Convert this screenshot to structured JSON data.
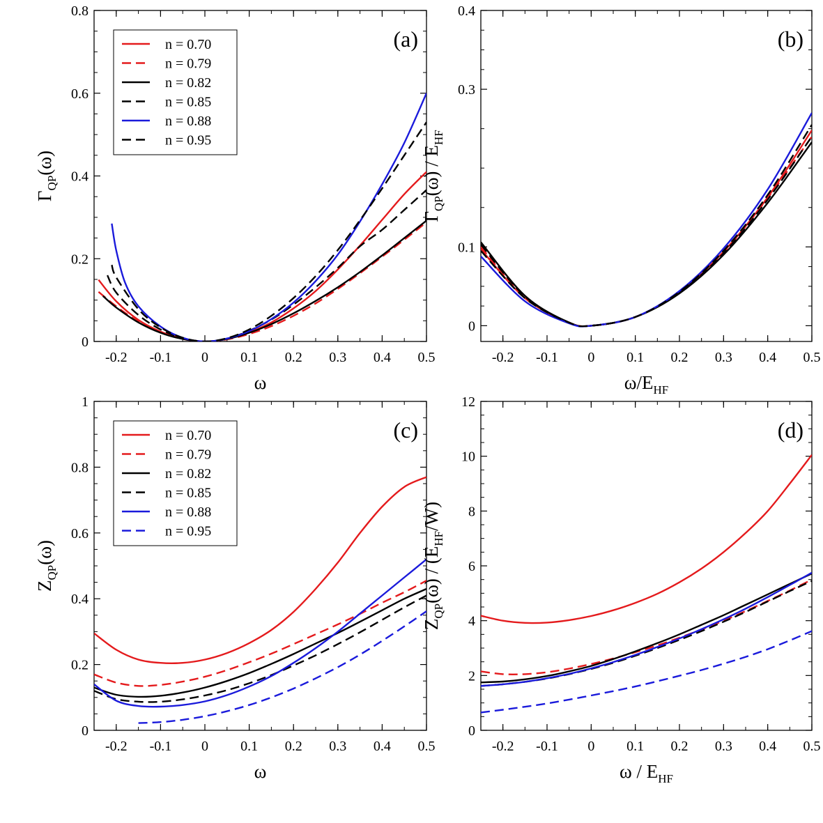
{
  "chart_data": [
    {
      "type": "line",
      "panel": "(a)",
      "xlabel": {
        "base": "ω",
        "sub": ""
      },
      "ylabel": {
        "pre": "Γ",
        "sub": "QP",
        "post": "(ω)"
      },
      "xlim": [
        -0.25,
        0.5
      ],
      "ylim": [
        0,
        0.8
      ],
      "xticks": [
        -0.2,
        -0.1,
        0,
        0.1,
        0.2,
        0.3,
        0.4,
        0.5
      ],
      "xtick_labels": [
        "-0.2",
        "-0.1",
        "0",
        "0.1",
        "0.2",
        "0.3",
        "0.4",
        "0.5"
      ],
      "yticks": [
        0,
        0.2,
        0.4,
        0.6,
        0.8
      ],
      "ytick_labels": [
        "0",
        "0.2",
        "0.4",
        "0.6",
        "0.8"
      ],
      "legend_position": "top-left",
      "series": [
        {
          "name": "n = 0.70",
          "color": "#e41a1c",
          "dash": "solid",
          "x": [
            -0.24,
            -0.2,
            -0.15,
            -0.1,
            -0.05,
            0,
            0.05,
            0.1,
            0.15,
            0.2,
            0.25,
            0.3,
            0.35,
            0.4,
            0.45,
            0.5
          ],
          "y": [
            0.149,
            0.097,
            0.052,
            0.024,
            0.007,
            0.0,
            0.006,
            0.022,
            0.046,
            0.08,
            0.122,
            0.174,
            0.232,
            0.294,
            0.356,
            0.41
          ]
        },
        {
          "name": "n = 0.79",
          "color": "#e41a1c",
          "dash": "dashed",
          "x": [
            -0.24,
            -0.2,
            -0.15,
            -0.1,
            -0.05,
            0,
            0.05,
            0.1,
            0.15,
            0.2,
            0.25,
            0.3,
            0.35,
            0.4,
            0.45,
            0.5
          ],
          "y": [
            0.12,
            0.085,
            0.048,
            0.022,
            0.006,
            0.0,
            0.005,
            0.018,
            0.037,
            0.062,
            0.092,
            0.127,
            0.165,
            0.205,
            0.246,
            0.288
          ]
        },
        {
          "name": "n = 0.82",
          "color": "#000000",
          "dash": "solid",
          "x": [
            -0.23,
            -0.2,
            -0.15,
            -0.1,
            -0.05,
            0,
            0.05,
            0.1,
            0.15,
            0.2,
            0.25,
            0.3,
            0.35,
            0.4,
            0.45,
            0.5
          ],
          "y": [
            0.11,
            0.082,
            0.046,
            0.021,
            0.006,
            0.0,
            0.006,
            0.021,
            0.042,
            0.068,
            0.098,
            0.131,
            0.168,
            0.208,
            0.25,
            0.292
          ]
        },
        {
          "name": "n = 0.85",
          "color": "#000000",
          "dash": "dashed",
          "x": [
            -0.22,
            -0.2,
            -0.15,
            -0.1,
            -0.05,
            0,
            0.05,
            0.1,
            0.15,
            0.2,
            0.25,
            0.3,
            0.35,
            0.4,
            0.45,
            0.5
          ],
          "y": [
            0.16,
            0.118,
            0.064,
            0.029,
            0.008,
            0.0,
            0.007,
            0.026,
            0.053,
            0.089,
            0.131,
            0.178,
            0.23,
            0.27,
            0.318,
            0.366
          ]
        },
        {
          "name": "n = 0.88",
          "color": "#1a1adb",
          "dash": "solid",
          "x": [
            -0.21,
            -0.2,
            -0.18,
            -0.15,
            -0.1,
            -0.05,
            0,
            0.05,
            0.1,
            0.15,
            0.2,
            0.25,
            0.3,
            0.35,
            0.4,
            0.45,
            0.5
          ],
          "y": [
            0.285,
            0.22,
            0.142,
            0.085,
            0.036,
            0.009,
            0.0,
            0.007,
            0.025,
            0.054,
            0.094,
            0.146,
            0.21,
            0.29,
            0.38,
            0.48,
            0.6
          ]
        },
        {
          "name": "n = 0.95",
          "color": "#000000",
          "dash": "dashed",
          "x": [
            -0.21,
            -0.2,
            -0.15,
            -0.1,
            -0.05,
            0,
            0.05,
            0.1,
            0.15,
            0.2,
            0.25,
            0.3,
            0.35,
            0.4,
            0.45,
            0.5
          ],
          "y": [
            0.185,
            0.155,
            0.078,
            0.034,
            0.009,
            0.0,
            0.008,
            0.029,
            0.062,
            0.105,
            0.158,
            0.221,
            0.293,
            0.37,
            0.45,
            0.53
          ]
        }
      ]
    },
    {
      "type": "line",
      "panel": "(b)",
      "xlabel": {
        "base": "ω/E",
        "sub": "HF"
      },
      "ylabel": {
        "pre": "Γ",
        "sub": "QP",
        "post": "(ω) / E",
        "sub2": "HF"
      },
      "xlim": [
        -0.25,
        0.5
      ],
      "ylim": [
        -0.02,
        0.4
      ],
      "xticks": [
        -0.2,
        -0.1,
        0,
        0.1,
        0.2,
        0.3,
        0.4,
        0.5
      ],
      "xtick_labels": [
        "-0.2",
        "-0.1",
        "0",
        "0.1",
        "0.2",
        "0.3",
        "0.4",
        "0.5"
      ],
      "yticks": [
        0,
        0.1,
        0.3,
        0.4
      ],
      "ytick_labels": [
        "0",
        "0.1",
        "0.3",
        "0.4"
      ],
      "series": [
        {
          "name": "n = 0.70",
          "color": "#e41a1c",
          "dash": "solid",
          "x": [
            -0.25,
            -0.15,
            -0.05,
            0,
            0.1,
            0.2,
            0.3,
            0.4,
            0.5
          ],
          "y": [
            0.097,
            0.035,
            0.004,
            0.0,
            0.011,
            0.043,
            0.094,
            0.163,
            0.248
          ]
        },
        {
          "name": "n = 0.79",
          "color": "#e41a1c",
          "dash": "dashed",
          "x": [
            -0.25,
            -0.15,
            -0.05,
            0,
            0.1,
            0.2,
            0.3,
            0.4,
            0.5
          ],
          "y": [
            0.1,
            0.036,
            0.004,
            0.0,
            0.011,
            0.043,
            0.093,
            0.162,
            0.24
          ]
        },
        {
          "name": "n = 0.82",
          "color": "#000000",
          "dash": "solid",
          "x": [
            -0.25,
            -0.15,
            -0.05,
            0,
            0.1,
            0.2,
            0.3,
            0.4,
            0.5
          ],
          "y": [
            0.106,
            0.038,
            0.004,
            0.0,
            0.011,
            0.041,
            0.09,
            0.156,
            0.233
          ]
        },
        {
          "name": "n = 0.85",
          "color": "#000000",
          "dash": "dashed",
          "x": [
            -0.25,
            -0.15,
            -0.05,
            0,
            0.1,
            0.2,
            0.3,
            0.4,
            0.5
          ],
          "y": [
            0.103,
            0.037,
            0.004,
            0.0,
            0.011,
            0.042,
            0.092,
            0.16,
            0.24
          ]
        },
        {
          "name": "n = 0.88",
          "color": "#1a1adb",
          "dash": "solid",
          "x": [
            -0.25,
            -0.15,
            -0.05,
            0,
            0.1,
            0.2,
            0.3,
            0.4,
            0.5
          ],
          "y": [
            0.088,
            0.031,
            0.003,
            0.0,
            0.011,
            0.044,
            0.098,
            0.173,
            0.27
          ]
        },
        {
          "name": "n = 0.95",
          "color": "#000000",
          "dash": "dashed",
          "x": [
            -0.25,
            -0.15,
            -0.05,
            0,
            0.1,
            0.2,
            0.3,
            0.4,
            0.5
          ],
          "y": [
            0.095,
            0.035,
            0.004,
            0.0,
            0.011,
            0.043,
            0.095,
            0.166,
            0.255
          ]
        }
      ]
    },
    {
      "type": "line",
      "panel": "(c)",
      "xlabel": {
        "base": "ω",
        "sub": ""
      },
      "ylabel": {
        "pre": "Z",
        "sub": "QP",
        "post": "(ω)"
      },
      "xlim": [
        -0.25,
        0.5
      ],
      "ylim": [
        0,
        1
      ],
      "xticks": [
        -0.2,
        -0.1,
        0,
        0.1,
        0.2,
        0.3,
        0.4,
        0.5
      ],
      "xtick_labels": [
        "-0.2",
        "-0.1",
        "0",
        "0.1",
        "0.2",
        "0.3",
        "0.4",
        "0.5"
      ],
      "yticks": [
        0,
        0.2,
        0.4,
        0.6,
        0.8,
        1
      ],
      "ytick_labels": [
        "0",
        "0.2",
        "0.4",
        "0.6",
        "0.8",
        "1"
      ],
      "legend_position": "top-left",
      "series": [
        {
          "name": "n = 0.70",
          "color": "#e41a1c",
          "dash": "solid",
          "x": [
            -0.25,
            -0.2,
            -0.15,
            -0.1,
            -0.05,
            0,
            0.05,
            0.1,
            0.15,
            0.2,
            0.25,
            0.3,
            0.35,
            0.4,
            0.45,
            0.5
          ],
          "y": [
            0.295,
            0.245,
            0.215,
            0.205,
            0.205,
            0.215,
            0.235,
            0.265,
            0.305,
            0.36,
            0.43,
            0.51,
            0.6,
            0.68,
            0.74,
            0.77
          ]
        },
        {
          "name": "n = 0.79",
          "color": "#e41a1c",
          "dash": "dashed",
          "x": [
            -0.25,
            -0.2,
            -0.15,
            -0.1,
            -0.05,
            0,
            0.05,
            0.1,
            0.15,
            0.2,
            0.25,
            0.3,
            0.35,
            0.4,
            0.45,
            0.5
          ],
          "y": [
            0.17,
            0.145,
            0.135,
            0.138,
            0.148,
            0.163,
            0.183,
            0.207,
            0.233,
            0.262,
            0.292,
            0.322,
            0.354,
            0.388,
            0.42,
            0.455
          ]
        },
        {
          "name": "n = 0.82",
          "color": "#000000",
          "dash": "solid",
          "x": [
            -0.25,
            -0.2,
            -0.15,
            -0.1,
            -0.05,
            0,
            0.05,
            0.1,
            0.15,
            0.2,
            0.25,
            0.3,
            0.35,
            0.4,
            0.45,
            0.5
          ],
          "y": [
            0.13,
            0.108,
            0.102,
            0.105,
            0.115,
            0.13,
            0.15,
            0.174,
            0.202,
            0.232,
            0.264,
            0.296,
            0.33,
            0.365,
            0.4,
            0.43
          ]
        },
        {
          "name": "n = 0.85",
          "color": "#000000",
          "dash": "dashed",
          "x": [
            -0.25,
            -0.2,
            -0.15,
            -0.1,
            -0.05,
            0,
            0.05,
            0.1,
            0.15,
            0.2,
            0.25,
            0.3,
            0.35,
            0.4,
            0.45,
            0.5
          ],
          "y": [
            0.12,
            0.095,
            0.087,
            0.087,
            0.094,
            0.106,
            0.122,
            0.143,
            0.168,
            0.197,
            0.228,
            0.262,
            0.298,
            0.336,
            0.374,
            0.41
          ]
        },
        {
          "name": "n = 0.88",
          "color": "#1a1adb",
          "dash": "solid",
          "x": [
            -0.25,
            -0.2,
            -0.15,
            -0.1,
            -0.05,
            0,
            0.05,
            0.1,
            0.15,
            0.2,
            0.25,
            0.3,
            0.35,
            0.4,
            0.45,
            0.5
          ],
          "y": [
            0.14,
            0.09,
            0.074,
            0.072,
            0.077,
            0.088,
            0.107,
            0.133,
            0.165,
            0.205,
            0.25,
            0.3,
            0.355,
            0.41,
            0.465,
            0.52
          ]
        },
        {
          "name": "n = 0.95",
          "color": "#1a1adb",
          "dash": "dashed",
          "x": [
            -0.15,
            -0.1,
            -0.05,
            0,
            0.05,
            0.1,
            0.15,
            0.2,
            0.25,
            0.3,
            0.35,
            0.4,
            0.45,
            0.5
          ],
          "y": [
            0.022,
            0.025,
            0.032,
            0.043,
            0.058,
            0.077,
            0.1,
            0.127,
            0.158,
            0.192,
            0.23,
            0.272,
            0.316,
            0.362
          ]
        }
      ]
    },
    {
      "type": "line",
      "panel": "(d)",
      "xlabel": {
        "base": "ω / E",
        "sub": "HF"
      },
      "ylabel": {
        "pre": "Z",
        "sub": "QP",
        "post": "(ω) / (E",
        "sub2": "HF",
        "post2": "/W)"
      },
      "xlim": [
        -0.25,
        0.5
      ],
      "ylim": [
        0,
        12
      ],
      "xticks": [
        -0.2,
        -0.1,
        0,
        0.1,
        0.2,
        0.3,
        0.4,
        0.5
      ],
      "xtick_labels": [
        "-0.2",
        "-0.1",
        "0",
        "0.1",
        "0.2",
        "0.3",
        "0.4",
        "0.5"
      ],
      "yticks": [
        0,
        2,
        4,
        6,
        8,
        10,
        12
      ],
      "ytick_labels": [
        "0",
        "2",
        "4",
        "6",
        "8",
        "10",
        "12"
      ],
      "series": [
        {
          "name": "n = 0.70",
          "color": "#e41a1c",
          "dash": "solid",
          "x": [
            -0.25,
            -0.2,
            -0.15,
            -0.1,
            -0.05,
            0,
            0.05,
            0.1,
            0.15,
            0.2,
            0.25,
            0.3,
            0.35,
            0.4,
            0.45,
            0.5
          ],
          "y": [
            4.18,
            4.0,
            3.92,
            3.93,
            4.02,
            4.17,
            4.38,
            4.65,
            4.98,
            5.4,
            5.9,
            6.5,
            7.2,
            8.0,
            9.0,
            10.05
          ]
        },
        {
          "name": "n = 0.79",
          "color": "#e41a1c",
          "dash": "dashed",
          "x": [
            -0.25,
            -0.2,
            -0.15,
            -0.1,
            -0.05,
            0,
            0.05,
            0.1,
            0.15,
            0.2,
            0.25,
            0.3,
            0.35,
            0.4,
            0.45,
            0.5
          ],
          "y": [
            2.15,
            2.05,
            2.05,
            2.12,
            2.25,
            2.42,
            2.62,
            2.85,
            3.1,
            3.38,
            3.68,
            4.0,
            4.35,
            4.72,
            5.1,
            5.5
          ]
        },
        {
          "name": "n = 0.82",
          "color": "#000000",
          "dash": "solid",
          "x": [
            -0.25,
            -0.2,
            -0.15,
            -0.1,
            -0.05,
            0,
            0.05,
            0.1,
            0.15,
            0.2,
            0.25,
            0.3,
            0.35,
            0.4,
            0.45,
            0.5
          ],
          "y": [
            1.75,
            1.78,
            1.86,
            1.98,
            2.15,
            2.35,
            2.6,
            2.88,
            3.18,
            3.5,
            3.85,
            4.2,
            4.58,
            4.96,
            5.34,
            5.72
          ]
        },
        {
          "name": "n = 0.85",
          "color": "#000000",
          "dash": "dashed",
          "x": [
            -0.25,
            -0.2,
            -0.15,
            -0.1,
            -0.05,
            0,
            0.05,
            0.1,
            0.15,
            0.2,
            0.25,
            0.3,
            0.35,
            0.4,
            0.45,
            0.5
          ],
          "y": [
            1.62,
            1.68,
            1.77,
            1.89,
            2.05,
            2.24,
            2.46,
            2.72,
            3.0,
            3.3,
            3.62,
            3.96,
            4.32,
            4.7,
            5.08,
            5.45
          ]
        },
        {
          "name": "n = 0.88",
          "color": "#1a1adb",
          "dash": "solid",
          "x": [
            -0.25,
            -0.2,
            -0.15,
            -0.1,
            -0.05,
            0,
            0.05,
            0.1,
            0.15,
            0.2,
            0.25,
            0.3,
            0.35,
            0.4,
            0.45,
            0.5
          ],
          "y": [
            1.62,
            1.68,
            1.77,
            1.9,
            2.06,
            2.26,
            2.49,
            2.75,
            3.04,
            3.35,
            3.69,
            4.05,
            4.44,
            4.86,
            5.3,
            5.75
          ]
        },
        {
          "name": "n = 0.95",
          "color": "#1a1adb",
          "dash": "dashed",
          "x": [
            -0.25,
            -0.2,
            -0.15,
            -0.1,
            -0.05,
            0,
            0.05,
            0.1,
            0.15,
            0.2,
            0.25,
            0.3,
            0.35,
            0.4,
            0.45,
            0.5
          ],
          "y": [
            0.65,
            0.75,
            0.86,
            0.98,
            1.12,
            1.27,
            1.43,
            1.6,
            1.79,
            1.99,
            2.2,
            2.43,
            2.68,
            2.96,
            3.28,
            3.62
          ]
        }
      ]
    }
  ]
}
